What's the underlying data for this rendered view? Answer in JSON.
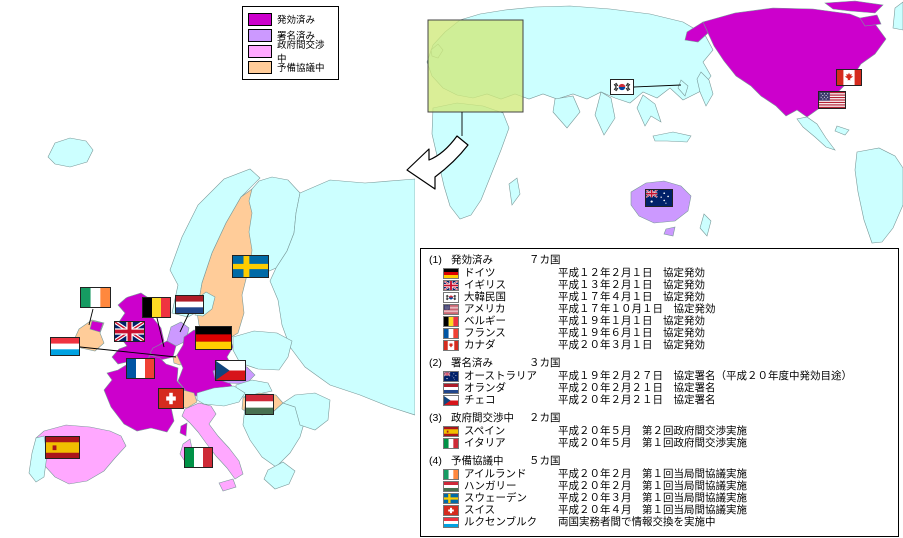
{
  "colors": {
    "in_effect": "#CC00CC",
    "signed": "#CC99FF",
    "negotiating": "#FFA8FF",
    "preliminary": "#FFCC99"
  },
  "legend": {
    "items": [
      {
        "label": "発効済み",
        "color_key": "in_effect"
      },
      {
        "label": "署名済み",
        "color_key": "signed"
      },
      {
        "label": "政府間交渉中",
        "color_key": "negotiating"
      },
      {
        "label": "予備協議中",
        "color_key": "preliminary"
      }
    ]
  },
  "world_map": {
    "flags": [
      {
        "country": "大韓民国",
        "code": "kr"
      },
      {
        "country": "カナダ",
        "code": "ca"
      },
      {
        "country": "アメリカ",
        "code": "us"
      },
      {
        "country": "オーストラリア",
        "code": "au"
      }
    ]
  },
  "europe_map": {
    "flags": [
      {
        "country": "スウェーデン",
        "code": "se"
      },
      {
        "country": "アイルランド",
        "code": "ie"
      },
      {
        "country": "イギリス",
        "code": "gb"
      },
      {
        "country": "ベルギー",
        "code": "be"
      },
      {
        "country": "オランダ",
        "code": "nl"
      },
      {
        "country": "ドイツ",
        "code": "de"
      },
      {
        "country": "ルクセンブルク",
        "code": "lu"
      },
      {
        "country": "フランス",
        "code": "fr"
      },
      {
        "country": "スイス",
        "code": "ch"
      },
      {
        "country": "チェコ",
        "code": "cz"
      },
      {
        "country": "ハンガリー",
        "code": "hu"
      },
      {
        "country": "スペイン",
        "code": "es"
      },
      {
        "country": "イタリア",
        "code": "it"
      }
    ]
  },
  "panel": {
    "sections": [
      {
        "no": "(1)",
        "title": "発効済み",
        "count": "７カ国",
        "rows": [
          {
            "code": "de",
            "country": "ドイツ",
            "detail": "平成１２年２月１日　協定発効"
          },
          {
            "code": "gb",
            "country": "イギリス",
            "detail": "平成１３年２月１日　協定発効"
          },
          {
            "code": "kr",
            "country": "大韓民国",
            "detail": "平成１７年４月１日　協定発効"
          },
          {
            "code": "us",
            "country": "アメリカ",
            "detail": "平成１７年１０月１日　協定発効"
          },
          {
            "code": "be",
            "country": "ベルギー",
            "detail": "平成１９年１月１日　協定発効"
          },
          {
            "code": "fr",
            "country": "フランス",
            "detail": "平成１９年６月１日　協定発効"
          },
          {
            "code": "ca",
            "country": "カナダ",
            "detail": "平成２０年３月１日　協定発効"
          }
        ]
      },
      {
        "no": "(2)",
        "title": "署名済み",
        "count": "３カ国",
        "rows": [
          {
            "code": "au",
            "country": "オーストラリア",
            "detail": "平成１９年２月２７日　協定署名（平成２０年度中発効目途）"
          },
          {
            "code": "nl",
            "country": "オランダ",
            "detail": "平成２０年２月２１日　協定署名"
          },
          {
            "code": "cz",
            "country": "チェコ",
            "detail": "平成２０年２月２１日　協定署名"
          }
        ]
      },
      {
        "no": "(3)",
        "title": "政府間交渉中",
        "count": "２カ国",
        "rows": [
          {
            "code": "es",
            "country": "スペイン",
            "detail": "平成２０年５月　第２回政府間交渉実施"
          },
          {
            "code": "it",
            "country": "イタリア",
            "detail": "平成２０年５月　第１回政府間交渉実施"
          }
        ]
      },
      {
        "no": "(4)",
        "title": "予備協議中",
        "count": "５カ国",
        "rows": [
          {
            "code": "ie",
            "country": "アイルランド",
            "detail": "平成２０年２月　第１回当局間協議実施"
          },
          {
            "code": "hu",
            "country": "ハンガリー",
            "detail": "平成２０年２月　第１回当局間協議実施"
          },
          {
            "code": "se",
            "country": "スウェーデン",
            "detail": "平成２０年３月　第１回当局間協議実施"
          },
          {
            "code": "ch",
            "country": "スイス",
            "detail": "平成２０年４月　第１回当局間協議実施"
          },
          {
            "code": "lu",
            "country": "ルクセンブルク",
            "detail": "両国実務者間で情報交換を実施中"
          }
        ]
      }
    ]
  }
}
